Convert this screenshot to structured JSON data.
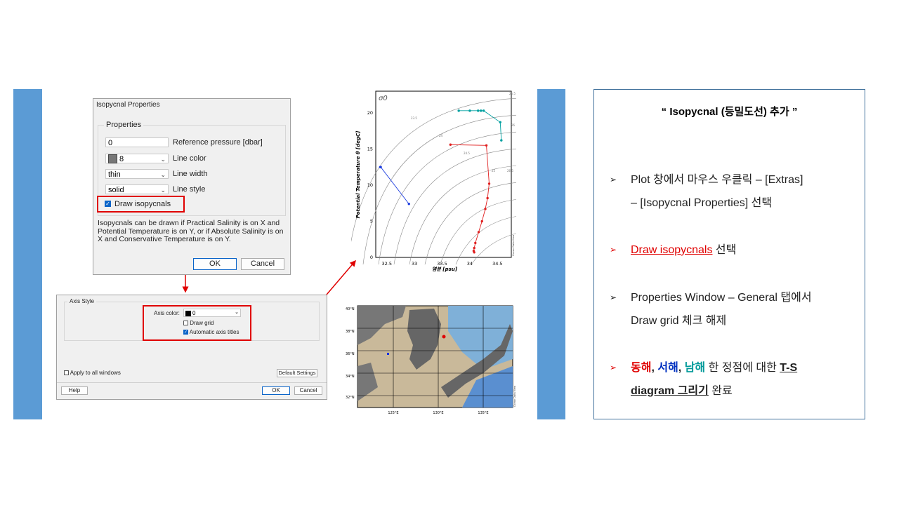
{
  "dialog1": {
    "title": "Isopycnal Properties",
    "group_label": "Properties",
    "ref_pressure_value": "0",
    "ref_pressure_label": "Reference pressure [dbar]",
    "line_color_value": "8",
    "line_color_label": "Line color",
    "line_width_value": "thin",
    "line_width_label": "Line width",
    "line_style_value": "solid",
    "line_style_label": "Line style",
    "draw_isopycnals_label": "Draw isopycnals",
    "info_text": "Isopycnals can be drawn if Practical Salinity is on X and Potential Temperature is on Y, or if Absolute Salinity is on X and Conservative Temperature is on Y.",
    "ok_label": "OK",
    "cancel_label": "Cancel"
  },
  "dialog2": {
    "group_label": "Axis Style",
    "axis_color_label": "Axis color:",
    "axis_color_value": "0",
    "draw_grid_label": "Draw grid",
    "auto_titles_label": "Automatic axis titles",
    "apply_all_label": "Apply to all windows",
    "default_settings_label": "Default Settings",
    "help_label": "Help",
    "ok_label": "OK",
    "cancel_label": "Cancel"
  },
  "chart_data": {
    "type": "scatter",
    "title": "",
    "corner_label": "σ0",
    "xlabel": "염분 [psu]",
    "ylabel": "Potential Temperature θ [degC]",
    "xlim": [
      32.3,
      34.75
    ],
    "ylim": [
      0,
      23
    ],
    "xticks": [
      "32.5",
      "33",
      "33.5",
      "34",
      "34.5"
    ],
    "yticks": [
      "0",
      "5",
      "10",
      "15",
      "20"
    ],
    "isopycnal_labels": [
      "23.5",
      "24",
      "24.5",
      "25",
      "25.5",
      "26",
      "26.5"
    ],
    "credit": "Ocean Data View",
    "series": [
      {
        "color": "#1f3fe0",
        "x": [
          32.38,
          32.39,
          32.9
        ],
        "y": [
          12.5,
          12.5,
          7.4
        ]
      },
      {
        "color": "#e02020",
        "x": [
          33.65,
          34.3,
          34.35,
          34.32,
          34.28,
          34.22,
          34.16,
          34.1,
          34.08,
          34.07,
          34.08
        ],
        "y": [
          15.6,
          15.5,
          10.2,
          8.2,
          6.7,
          5.0,
          3.5,
          2.0,
          1.3,
          0.9,
          0.7
        ]
      },
      {
        "color": "#00a0a0",
        "x": [
          33.8,
          34.0,
          34.15,
          34.2,
          34.25,
          34.55,
          34.57
        ],
        "y": [
          20.3,
          20.3,
          20.3,
          20.3,
          20.3,
          18.7,
          16.2
        ]
      }
    ]
  },
  "map": {
    "lat_labels": [
      "40°N",
      "38°N",
      "36°N",
      "34°N",
      "32°N"
    ],
    "lon_labels": [
      "125°E",
      "130°E",
      "135°E"
    ],
    "credit": "Ocean Data View"
  },
  "panel": {
    "title": "“ Isopycnal (등밀도선) 추가 ”",
    "bullets": [
      {
        "text1": "Plot 창에서 마우스 우클릭 – [Extras]",
        "text2": "– [Isopycnal Properties] 선택"
      },
      {
        "link": "Draw isopycnals",
        "rest": " 선택"
      },
      {
        "text1": "Properties Window – General 탭에서",
        "text2": "Draw grid 체크 해제"
      },
      {
        "east": "동해",
        "comma1": ", ",
        "west": "서해",
        "comma2": ", ",
        "south": "남해",
        "mid": " 한 정점에 대한 ",
        "ts": "T-S",
        "diagram": "diagram 그리기",
        "end": " 완료"
      }
    ]
  },
  "colors": {
    "accent_bar": "#5b9bd5",
    "highlight": "#e00000",
    "panel_border": "#41719c"
  }
}
